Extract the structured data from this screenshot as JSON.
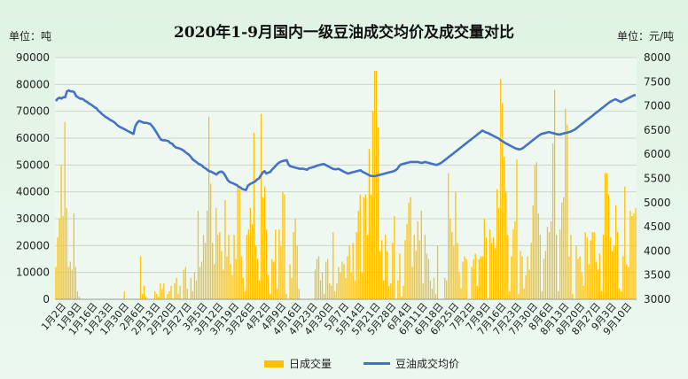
{
  "chart_data": {
    "type": "bar+line",
    "title": "2020年1-9月国内一级豆油成交均价及成交量对比",
    "left_unit_label": "单位：吨",
    "right_unit_label": "单位：元/吨",
    "y_left": {
      "min": 0,
      "max": 90000,
      "ticks": [
        "0",
        "10000",
        "20000",
        "30000",
        "40000",
        "50000",
        "60000",
        "70000",
        "80000",
        "90000"
      ]
    },
    "y_right": {
      "min": 3000,
      "max": 8000,
      "ticks": [
        "3000",
        "3500",
        "4000",
        "4500",
        "5000",
        "5500",
        "6000",
        "6500",
        "7000",
        "7500",
        "8000"
      ]
    },
    "x_ticks": [
      "1月2日",
      "1月9日",
      "1月16日",
      "1月23日",
      "1月30日",
      "2月6日",
      "2月13日",
      "2月20日",
      "2月27日",
      "3月5日",
      "3月12日",
      "3月19日",
      "3月26日",
      "4月2日",
      "4月9日",
      "4月16日",
      "4月23日",
      "4月30日",
      "5月7日",
      "5月14日",
      "5月21日",
      "5月28日",
      "6月4日",
      "6月11日",
      "6月18日",
      "6月25日",
      "7月2日",
      "7月9日",
      "7月16日",
      "7月23日",
      "7月30日",
      "8月6日",
      "8月13日",
      "8月20日",
      "8月27日",
      "9月3日",
      "9月10日"
    ],
    "grid": true,
    "legend_position": "bottom",
    "series": [
      {
        "name": "日成交量",
        "kind": "bar",
        "axis": "left",
        "color": "#ffc000",
        "values": [
          12000,
          23000,
          30000,
          50000,
          31000,
          66000,
          34000,
          12000,
          14000,
          11000,
          32000,
          12000,
          3000,
          1000,
          0,
          0,
          0,
          0,
          0,
          0,
          0,
          0,
          0,
          0,
          0,
          0,
          0,
          0,
          0,
          0,
          0,
          0,
          0,
          0,
          0,
          0,
          0,
          0,
          3000,
          0,
          0,
          0,
          0,
          0,
          0,
          0,
          0,
          16000,
          2000,
          5000,
          1000,
          0,
          0,
          0,
          0,
          3000,
          2000,
          1000,
          6000,
          4000,
          6000,
          0,
          2000,
          3000,
          5000,
          0,
          6000,
          8000,
          2000,
          5000,
          0,
          11000,
          12000,
          4000,
          0,
          8000,
          3000,
          10000,
          7000,
          33000,
          12000,
          14000,
          24000,
          21000,
          33000,
          68000,
          43000,
          21000,
          13000,
          34000,
          24000,
          25000,
          18000,
          11000,
          37000,
          16000,
          24000,
          13000,
          9000,
          24000,
          15000,
          43000,
          41000,
          16000,
          8000,
          3000,
          24000,
          26000,
          34000,
          28000,
          62000,
          20000,
          15000,
          7000,
          69000,
          38000,
          42000,
          26000,
          9000,
          2000,
          15000,
          14000,
          26000,
          4000,
          26000,
          20000,
          40000,
          39000,
          2000,
          0,
          13000,
          8000,
          25000,
          30000,
          20000,
          4000,
          0,
          0,
          0,
          0,
          0,
          0,
          0,
          0,
          11000,
          15000,
          16000,
          7000,
          10000,
          2000,
          14000,
          15000,
          6000,
          5000,
          25000,
          3000,
          6000,
          12000,
          10000,
          14000,
          13000,
          8000,
          16000,
          20000,
          10000,
          21000,
          7000,
          25000,
          33000,
          39000,
          10000,
          38000,
          39000,
          24000,
          56000,
          39000,
          70000,
          85000,
          85000,
          64000,
          18000,
          22000,
          7000,
          24000,
          18000,
          5000,
          6000,
          21000,
          31000,
          0,
          7000,
          17000,
          1000,
          5000,
          22000,
          28000,
          36000,
          38000,
          12000,
          24000,
          18000,
          29000,
          22000,
          33000,
          6000,
          24000,
          17000,
          15000,
          7000,
          4000,
          8000,
          2000,
          20000,
          0,
          0,
          0,
          8000,
          7000,
          47000,
          30000,
          25000,
          20000,
          40000,
          21000,
          10000,
          4000,
          14000,
          16000,
          15000,
          0,
          0,
          12000,
          15000,
          17000,
          5000,
          15000,
          16000,
          16000,
          30000,
          23000,
          0,
          26000,
          21000,
          23000,
          19000,
          41000,
          34000,
          82000,
          73000,
          53000,
          40000,
          24000,
          3000,
          16000,
          26000,
          29000,
          52000,
          2000,
          18000,
          16000,
          4000,
          9000,
          16000,
          11000,
          21000,
          35000,
          50000,
          51000,
          32000,
          24000,
          3000,
          15000,
          18000,
          27000,
          25000,
          29000,
          58000,
          78000,
          24000,
          3000,
          26000,
          36000,
          38000,
          71000,
          65000,
          16000,
          24000,
          2000,
          0,
          20000,
          15000,
          16000,
          10000,
          5000,
          25000,
          23000,
          13000,
          22000,
          25000,
          25000,
          14000,
          11000,
          17000,
          3000,
          24000,
          47000,
          47000,
          39000,
          23000,
          18000,
          20000,
          35000,
          25000,
          4000,
          3000,
          16000,
          42000,
          13000,
          12000,
          33000,
          31000,
          32000,
          34000
        ]
      },
      {
        "name": "豆油成交均价",
        "kind": "line",
        "axis": "right",
        "color": "#4472c4",
        "values": [
          7100,
          7150,
          7170,
          7150,
          7180,
          7180,
          7300,
          7320,
          7300,
          7300,
          7280,
          7200,
          7180,
          7150,
          7150,
          7130,
          7100,
          7080,
          7050,
          7030,
          7000,
          6970,
          6950,
          6900,
          6870,
          6830,
          6800,
          6770,
          6750,
          6720,
          6700,
          6680,
          6650,
          6610,
          6580,
          6560,
          6540,
          6520,
          6500,
          6480,
          6460,
          6440,
          6420,
          6580,
          6650,
          6690,
          6680,
          6660,
          6650,
          6650,
          6640,
          6630,
          6590,
          6540,
          6480,
          6420,
          6350,
          6300,
          6290,
          6290,
          6280,
          6270,
          6230,
          6220,
          6170,
          6140,
          6130,
          6120,
          6100,
          6080,
          6050,
          6020,
          5990,
          5950,
          5900,
          5870,
          5840,
          5810,
          5790,
          5770,
          5730,
          5710,
          5680,
          5650,
          5640,
          5620,
          5600,
          5580,
          5620,
          5640,
          5640,
          5600,
          5540,
          5470,
          5430,
          5410,
          5400,
          5380,
          5360,
          5330,
          5310,
          5280,
          5270,
          5260,
          5350,
          5380,
          5400,
          5420,
          5440,
          5480,
          5500,
          5560,
          5620,
          5650,
          5600,
          5620,
          5630,
          5680,
          5720,
          5760,
          5800,
          5830,
          5850,
          5860,
          5870,
          5880,
          5790,
          5750,
          5740,
          5730,
          5720,
          5710,
          5700,
          5700,
          5700,
          5690,
          5680,
          5710,
          5720,
          5730,
          5740,
          5760,
          5770,
          5780,
          5790,
          5800,
          5780,
          5760,
          5740,
          5720,
          5700,
          5690,
          5690,
          5700,
          5680,
          5660,
          5640,
          5620,
          5600,
          5610,
          5620,
          5630,
          5640,
          5650,
          5660,
          5670,
          5640,
          5620,
          5600,
          5580,
          5560,
          5550,
          5550,
          5550,
          5560,
          5570,
          5580,
          5590,
          5600,
          5610,
          5620,
          5630,
          5640,
          5650,
          5670,
          5700,
          5760,
          5790,
          5800,
          5810,
          5820,
          5830,
          5840,
          5840,
          5840,
          5840,
          5840,
          5830,
          5820,
          5830,
          5840,
          5830,
          5820,
          5810,
          5800,
          5790,
          5780,
          5790,
          5810,
          5830,
          5860,
          5890,
          5920,
          5950,
          5980,
          6010,
          6040,
          6070,
          6100,
          6130,
          6160,
          6190,
          6220,
          6250,
          6280,
          6310,
          6340,
          6370,
          6400,
          6430,
          6460,
          6490,
          6470,
          6450,
          6440,
          6420,
          6400,
          6380,
          6360,
          6340,
          6320,
          6290,
          6270,
          6240,
          6220,
          6200,
          6180,
          6160,
          6140,
          6120,
          6110,
          6100,
          6110,
          6130,
          6160,
          6190,
          6220,
          6250,
          6280,
          6310,
          6340,
          6370,
          6400,
          6420,
          6430,
          6440,
          6450,
          6460,
          6450,
          6440,
          6430,
          6420,
          6410,
          6410,
          6420,
          6430,
          6440,
          6450,
          6460,
          6470,
          6490,
          6510,
          6540,
          6570,
          6600,
          6630,
          6660,
          6690,
          6720,
          6750,
          6780,
          6810,
          6840,
          6870,
          6900,
          6930,
          6960,
          6990,
          7020,
          7050,
          7080,
          7100,
          7120,
          7140,
          7120,
          7100,
          7080,
          7100,
          7120,
          7140,
          7160,
          7180,
          7200,
          7220,
          7220
        ]
      }
    ]
  }
}
